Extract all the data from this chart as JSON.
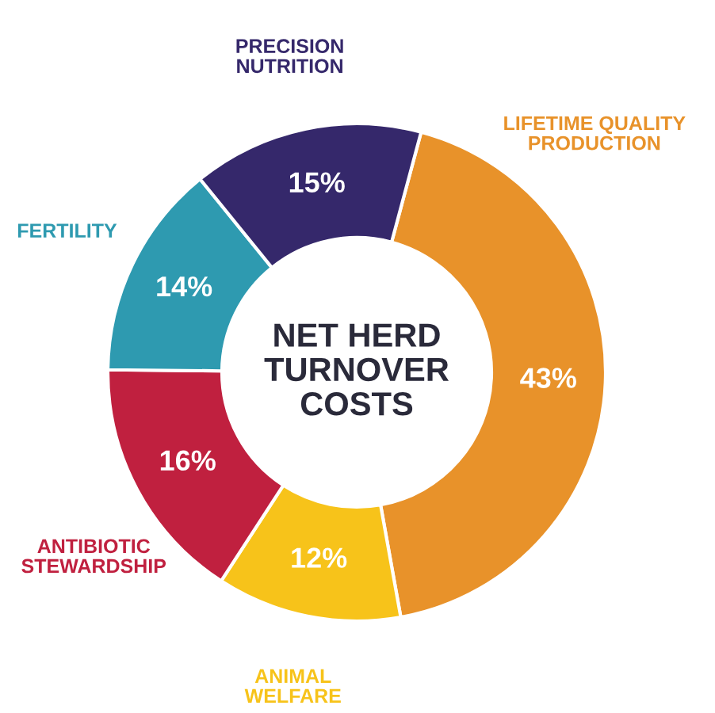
{
  "chart_data": {
    "type": "donut",
    "title": "NET HERD\nTURNOVER\nCOSTS",
    "categories": [
      "LIFETIME QUALITY\nPRODUCTION",
      "ANIMAL\nWELFARE",
      "ANTIBIOTIC\nSTEWARDSHIP",
      "FERTILITY",
      "PRECISION\nNUTRITION"
    ],
    "values": [
      43,
      12,
      16,
      14,
      15
    ],
    "value_labels": [
      "43%",
      "12%",
      "16%",
      "14%",
      "15%"
    ],
    "colors": [
      "#e8922a",
      "#f7c31a",
      "#c0203f",
      "#2e9ab0",
      "#35286b"
    ],
    "legend": false
  }
}
